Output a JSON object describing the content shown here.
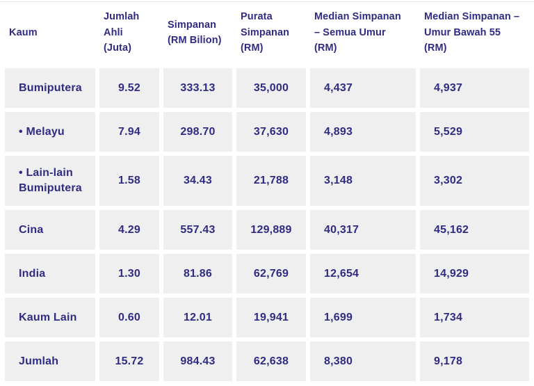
{
  "colors": {
    "text_color": "#302b83",
    "row_bg": "#efefef",
    "header_bg": "#ffffff",
    "page_bg": "#ffffff",
    "rule_color": "#e6e6e6"
  },
  "table": {
    "header": {
      "kaum": "Kaum",
      "jumlah_ahli": [
        "Jumlah",
        "Ahli",
        "(Juta)"
      ],
      "simpanan": [
        "Simpanan",
        "(RM Bilion)"
      ],
      "purata": [
        "Purata",
        "Simpanan",
        "(RM)"
      ],
      "median_semua": [
        "Median Simpanan",
        "– Semua Umur",
        "(RM)"
      ],
      "median_b55": [
        "Median Simpanan –",
        "Umur Bawah 55",
        "(RM)"
      ]
    },
    "rows": [
      {
        "kaum": "Bumiputera",
        "ahli": "9.52",
        "simpanan": "333.13",
        "purata": "35,000",
        "median_semua": "4,437",
        "median_b55": "4,937"
      },
      {
        "kaum": "• Melayu",
        "ahli": "7.94",
        "simpanan": "298.70",
        "purata": "37,630",
        "median_semua": "4,893",
        "median_b55": "5,529"
      },
      {
        "kaum": [
          "• Lain-lain",
          "Bumiputera"
        ],
        "ahli": "1.58",
        "simpanan": "34.43",
        "purata": "21,788",
        "median_semua": "3,148",
        "median_b55": "3,302"
      },
      {
        "kaum": "Cina",
        "ahli": "4.29",
        "simpanan": "557.43",
        "purata": "129,889",
        "median_semua": "40,317",
        "median_b55": "45,162"
      },
      {
        "kaum": "India",
        "ahli": "1.30",
        "simpanan": "81.86",
        "purata": "62,769",
        "median_semua": "12,654",
        "median_b55": "14,929"
      },
      {
        "kaum": "Kaum Lain",
        "ahli": "0.60",
        "simpanan": "12.01",
        "purata": "19,941",
        "median_semua": "1,699",
        "median_b55": "1,734"
      },
      {
        "kaum": "Jumlah",
        "ahli": "15.72",
        "simpanan": "984.43",
        "purata": "62,638",
        "median_semua": "8,380",
        "median_b55": "9,178"
      }
    ]
  },
  "chart_data": {
    "type": "table",
    "title": "",
    "columns": [
      "Kaum",
      "Jumlah Ahli (Juta)",
      "Simpanan (RM Bilion)",
      "Purata Simpanan (RM)",
      "Median Simpanan – Semua Umur (RM)",
      "Median Simpanan – Umur Bawah 55 (RM)"
    ],
    "rows": [
      [
        "Bumiputera",
        9.52,
        333.13,
        35000,
        4437,
        4937
      ],
      [
        "• Melayu",
        7.94,
        298.7,
        37630,
        4893,
        5529
      ],
      [
        "• Lain-lain Bumiputera",
        1.58,
        34.43,
        21788,
        3148,
        3302
      ],
      [
        "Cina",
        4.29,
        557.43,
        129889,
        40317,
        45162
      ],
      [
        "India",
        1.3,
        81.86,
        62769,
        12654,
        14929
      ],
      [
        "Kaum Lain",
        0.6,
        12.01,
        19941,
        1699,
        1734
      ],
      [
        "Jumlah",
        15.72,
        984.43,
        62638,
        8380,
        9178
      ]
    ]
  }
}
